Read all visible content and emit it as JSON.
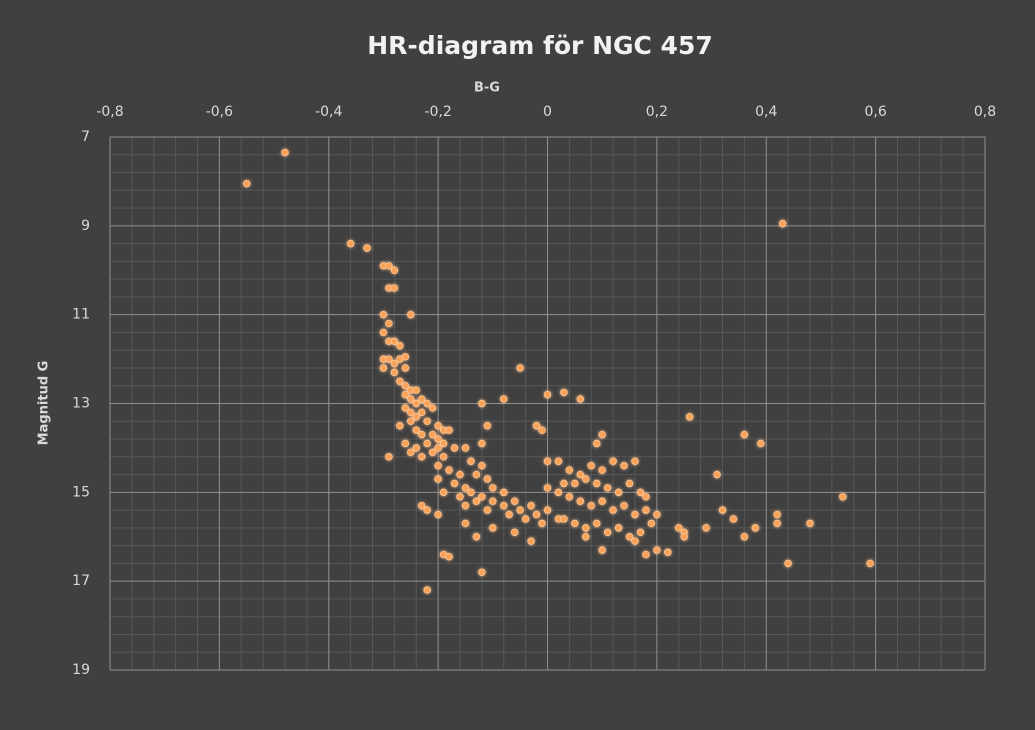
{
  "chart_data": {
    "type": "scatter",
    "title": "HR-diagram för NGC 457",
    "xlabel": "B-G",
    "ylabel": "Magnitud G",
    "color": "#f9a35a",
    "xlim": [
      -0.8,
      0.8
    ],
    "xticks": [
      {
        "value": -0.8,
        "label": "-0,8"
      },
      {
        "value": -0.6,
        "label": "-0,6"
      },
      {
        "value": -0.4,
        "label": "-0,4"
      },
      {
        "value": -0.2,
        "label": "-0,2"
      },
      0,
      {
        "value": 0.2,
        "label": "0,2"
      },
      {
        "value": 0.4,
        "label": "0,4"
      },
      {
        "value": 0.6,
        "label": "0,6"
      },
      {
        "value": 0.8,
        "label": "0,8"
      }
    ],
    "ylim": [
      7,
      19
    ],
    "yticks": [
      7,
      9,
      11,
      13,
      15,
      17,
      19
    ],
    "y_inverted": true,
    "x_axis_position": "top",
    "grid": true,
    "minor_grid": 5,
    "x": [
      -0.55,
      -0.48,
      0.43,
      -0.36,
      -0.33,
      -0.3,
      -0.29,
      -0.28,
      -0.29,
      -0.28,
      -0.3,
      -0.29,
      -0.3,
      -0.29,
      -0.28,
      -0.27,
      -0.3,
      -0.29,
      -0.28,
      -0.27,
      -0.26,
      -0.3,
      -0.28,
      -0.26,
      -0.27,
      -0.26,
      -0.25,
      -0.24,
      -0.26,
      -0.25,
      -0.24,
      -0.23,
      -0.22,
      -0.26,
      -0.25,
      -0.24,
      -0.23,
      -0.21,
      -0.25,
      -0.22,
      -0.2,
      -0.19,
      -0.27,
      -0.24,
      -0.23,
      -0.21,
      -0.2,
      -0.18,
      -0.26,
      -0.24,
      -0.22,
      -0.2,
      -0.19,
      -0.17,
      -0.25,
      -0.23,
      -0.21,
      -0.19,
      -0.15,
      -0.29,
      -0.2,
      -0.18,
      -0.16,
      -0.14,
      -0.12,
      -0.2,
      -0.17,
      -0.15,
      -0.13,
      -0.11,
      -0.19,
      -0.16,
      -0.14,
      -0.12,
      -0.1,
      -0.08,
      -0.15,
      -0.13,
      -0.1,
      -0.08,
      -0.06,
      -0.05,
      -0.03,
      -0.02,
      0.0,
      -0.11,
      -0.07,
      -0.04,
      -0.01,
      0.02,
      -0.23,
      -0.22,
      -0.2,
      -0.15,
      -0.13,
      -0.1,
      -0.06,
      -0.03,
      -0.19,
      -0.18,
      -0.12,
      -0.22,
      -0.25,
      -0.05,
      -0.08,
      -0.12,
      -0.11,
      -0.12,
      0.0,
      0.03,
      0.06,
      -0.02,
      -0.01,
      0.0,
      0.02,
      0.04,
      0.06,
      0.08,
      0.1,
      0.12,
      0.09,
      0.1,
      0.05,
      0.07,
      0.09,
      0.11,
      0.13,
      0.15,
      0.17,
      0.18,
      0.0,
      0.02,
      0.04,
      0.06,
      0.08,
      0.1,
      0.12,
      0.14,
      0.16,
      0.18,
      0.2,
      0.03,
      0.05,
      0.07,
      0.09,
      0.11,
      0.13,
      0.15,
      0.17,
      0.19,
      0.07,
      0.1,
      0.16,
      0.18,
      0.2,
      0.22,
      0.24,
      0.25,
      0.25,
      0.29,
      0.31,
      0.32,
      0.26,
      0.36,
      0.39,
      0.34,
      0.36,
      0.38,
      0.42,
      0.42,
      0.44,
      0.48,
      0.54,
      0.59,
      0.16,
      0.14,
      0.03
    ],
    "values": [
      8.05,
      7.35,
      8.95,
      9.4,
      9.5,
      9.9,
      9.9,
      10.0,
      10.4,
      10.4,
      11.0,
      11.2,
      11.4,
      11.6,
      11.6,
      11.7,
      12.0,
      12.0,
      12.1,
      12.0,
      11.95,
      12.2,
      12.3,
      12.2,
      12.5,
      12.6,
      12.7,
      12.7,
      12.8,
      12.9,
      13.0,
      12.9,
      13.0,
      13.1,
      13.2,
      13.3,
      13.2,
      13.1,
      13.4,
      13.4,
      13.5,
      13.6,
      13.5,
      13.6,
      13.7,
      13.7,
      13.8,
      13.6,
      13.9,
      14.0,
      13.9,
      14.0,
      13.9,
      14.0,
      14.1,
      14.2,
      14.1,
      14.2,
      14.0,
      14.2,
      14.4,
      14.5,
      14.6,
      14.3,
      14.4,
      14.7,
      14.8,
      14.9,
      14.6,
      14.7,
      15.0,
      15.1,
      15.0,
      15.1,
      14.9,
      15.0,
      15.3,
      15.2,
      15.2,
      15.3,
      15.2,
      15.4,
      15.3,
      15.5,
      15.4,
      15.4,
      15.5,
      15.6,
      15.7,
      15.6,
      15.3,
      15.4,
      15.5,
      15.7,
      16.0,
      15.8,
      15.9,
      16.1,
      16.4,
      16.45,
      16.8,
      17.2,
      11.0,
      12.2,
      12.9,
      13.0,
      13.5,
      13.9,
      12.8,
      12.75,
      12.9,
      13.5,
      13.6,
      14.3,
      14.3,
      14.5,
      14.6,
      14.4,
      14.5,
      14.3,
      13.9,
      13.7,
      14.8,
      14.7,
      14.8,
      14.9,
      15.0,
      14.8,
      15.0,
      15.1,
      14.9,
      15.0,
      15.1,
      15.2,
      15.3,
      15.2,
      15.4,
      15.3,
      15.5,
      15.4,
      15.5,
      15.6,
      15.7,
      15.8,
      15.7,
      15.9,
      15.8,
      16.0,
      15.9,
      15.7,
      16.0,
      16.3,
      16.1,
      16.4,
      16.3,
      16.35,
      15.8,
      15.9,
      16.0,
      15.8,
      14.6,
      15.4,
      13.3,
      13.7,
      13.9,
      15.6,
      16.0,
      15.8,
      15.5,
      15.7,
      16.6,
      15.7,
      15.1,
      16.6,
      14.3,
      14.4,
      14.8
    ]
  }
}
